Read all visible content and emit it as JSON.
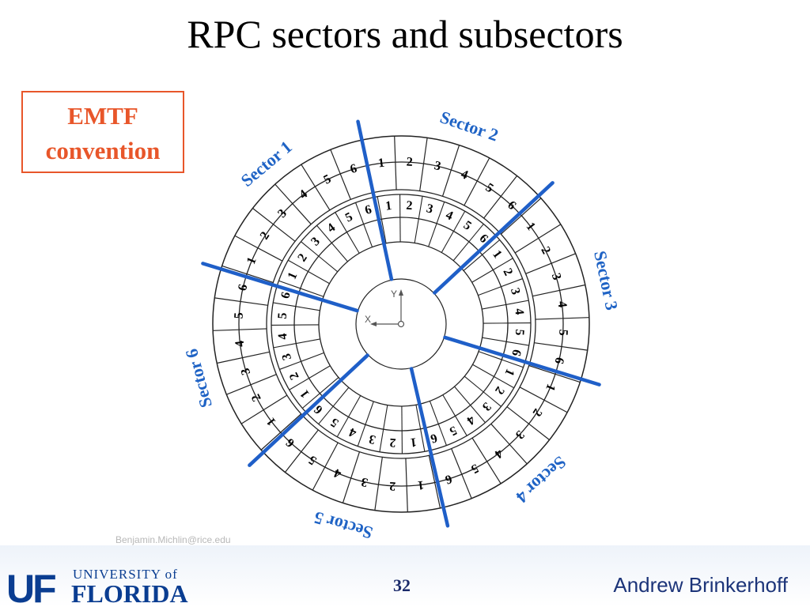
{
  "slide": {
    "title": "RPC sectors and subsectors",
    "box_lines": [
      "EMTF",
      "convention"
    ],
    "page_number": "32",
    "author": "Andrew Brinkerhoff",
    "watermark": "Benjamin.Michlin@rice.edu"
  },
  "logo": {
    "uf_mark": "UF",
    "university_of": "UNIVERSITY of",
    "florida": "FLORIDA"
  },
  "diagram": {
    "axis_x": "X",
    "axis_y": "Y",
    "outer_ring": {
      "segments": 36,
      "labels": [
        "1",
        "2",
        "3",
        "4",
        "5",
        "6",
        "1",
        "2",
        "3",
        "4",
        "5",
        "6",
        "1",
        "2",
        "3",
        "4",
        "5",
        "6",
        "1",
        "2",
        "3",
        "4",
        "5",
        "6",
        "1",
        "2",
        "3",
        "4",
        "5",
        "6",
        "1",
        "2",
        "3",
        "4",
        "5",
        "6"
      ]
    },
    "inner_ring": {
      "segments": 36,
      "labels": [
        "1",
        "2",
        "3",
        "4",
        "5",
        "6",
        "1",
        "2",
        "3",
        "4",
        "5",
        "6",
        "1",
        "2",
        "3",
        "4",
        "5",
        "6",
        "1",
        "2",
        "3",
        "4",
        "5",
        "6",
        "1",
        "2",
        "3",
        "4",
        "5",
        "6",
        "1",
        "2",
        "3",
        "4",
        "5",
        "6"
      ]
    },
    "sectors": [
      "Sector 1",
      "Sector 2",
      "Sector 3",
      "Sector 4",
      "Sector 5",
      "Sector 6"
    ],
    "colors": {
      "sector_lines": "#1f5fc8",
      "sector_labels": "#1f63c5",
      "box": "#e8562a"
    }
  }
}
